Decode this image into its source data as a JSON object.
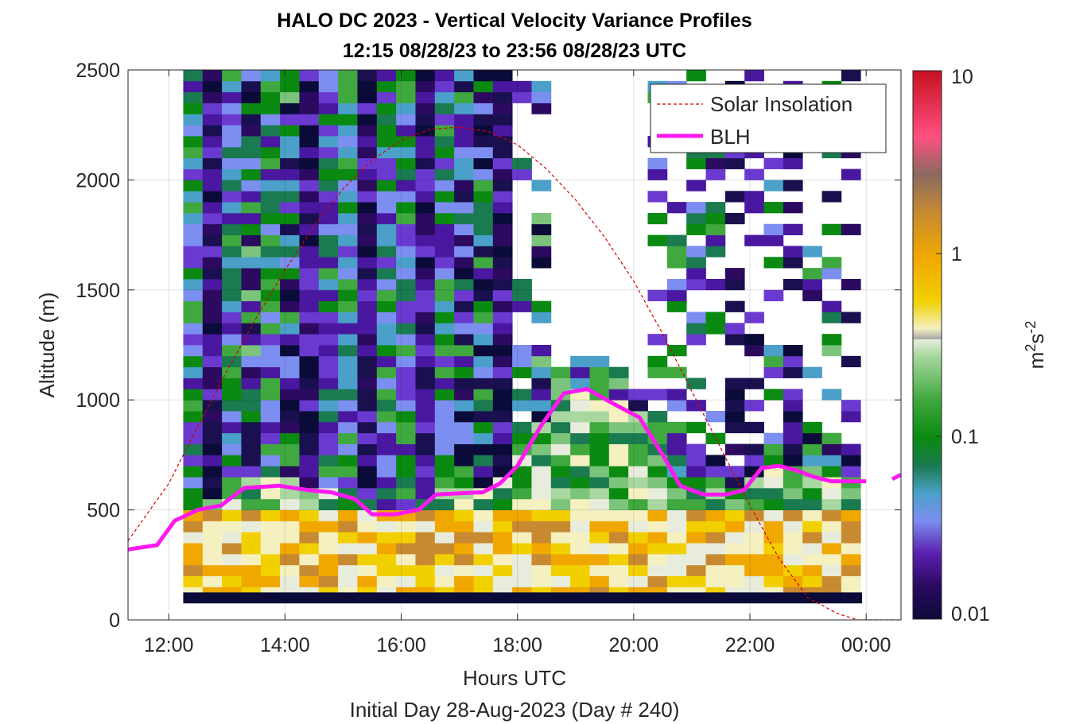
{
  "chart_data": {
    "type": "heatmap",
    "title": "HALO DC 2023 - Vertical Velocity Variance Profiles",
    "subtitle": "12:15 08/28/23 to 23:56 08/28/23  UTC",
    "xlabel": "Hours UTC",
    "ylabel": "Altitude (m)",
    "footer": "Initial Day 28-Aug-2023 (Day # 240)",
    "x_range_hours": [
      11.3,
      24.6
    ],
    "ylim": [
      0,
      2500
    ],
    "x_tick_hours": [
      12,
      14,
      16,
      18,
      20,
      22,
      24
    ],
    "x_tick_labels": [
      "12:00",
      "14:00",
      "16:00",
      "18:00",
      "20:00",
      "22:00",
      "00:00"
    ],
    "y_ticks": [
      0,
      500,
      1000,
      1500,
      2000,
      2500
    ],
    "grid": true,
    "legend_position": "top-right",
    "colorbar": {
      "scale": "log",
      "min": 0.01,
      "max": 10,
      "ticks": [
        0.01,
        0.1,
        1,
        10
      ],
      "tick_labels": [
        "0.01",
        "0.1",
        "1",
        "10"
      ],
      "label_base": "m",
      "label_sup1": "2",
      "label_mid": "s",
      "label_sup2": "-2"
    },
    "heatmap": {
      "x_start_hours": 12.25,
      "x_end_hours": 23.93,
      "bin_hours": 0.333,
      "altitude_start_m": 100,
      "altitude_end_m": 2500,
      "bin_m": 50,
      "pattern": "log10 variance high (~0.3-1) below ~500 m, mixed 0.03-0.3 in 500-1000 m, mostly 0.01-0.1 above; gaps above the boundary layer after ~18:00"
    },
    "series": [
      {
        "name": "Solar Insolation",
        "color": "#d40000",
        "style": "dashed",
        "x": [
          11.3,
          12.0,
          12.5,
          13.0,
          13.5,
          14.0,
          14.5,
          15.0,
          15.5,
          16.0,
          16.5,
          17.0,
          17.5,
          18.0,
          18.5,
          19.0,
          19.5,
          20.0,
          20.5,
          21.0,
          21.5,
          22.0,
          22.5,
          23.0,
          23.5,
          23.85,
          24.0,
          24.6
        ],
        "y": [
          360,
          620,
          880,
          1130,
          1370,
          1590,
          1790,
          1960,
          2090,
          2180,
          2230,
          2240,
          2220,
          2160,
          2050,
          1910,
          1740,
          1540,
          1300,
          1040,
          780,
          520,
          280,
          100,
          30,
          0,
          0,
          0
        ]
      },
      {
        "name": "BLH",
        "color": "#ff19f0",
        "style": "solid",
        "x": [
          11.3,
          11.8,
          12.1,
          12.5,
          12.9,
          13.3,
          13.9,
          14.4,
          14.8,
          15.2,
          15.5,
          15.9,
          16.3,
          16.6,
          17.0,
          17.4,
          17.7,
          18.0,
          18.4,
          18.8,
          19.2,
          19.6,
          20.1,
          20.5,
          20.8,
          21.2,
          21.6,
          21.9,
          22.2,
          22.5,
          22.8,
          23.1,
          23.4,
          23.8,
          24.0
        ],
        "y": [
          320,
          340,
          450,
          500,
          520,
          600,
          610,
          590,
          580,
          550,
          480,
          480,
          500,
          570,
          575,
          580,
          620,
          700,
          880,
          1030,
          1050,
          990,
          920,
          750,
          610,
          570,
          570,
          590,
          690,
          700,
          680,
          650,
          630,
          630,
          630
        ],
        "extra_segment": {
          "x": [
            24.45,
            24.6
          ],
          "y": [
            640,
            660
          ]
        }
      }
    ]
  }
}
